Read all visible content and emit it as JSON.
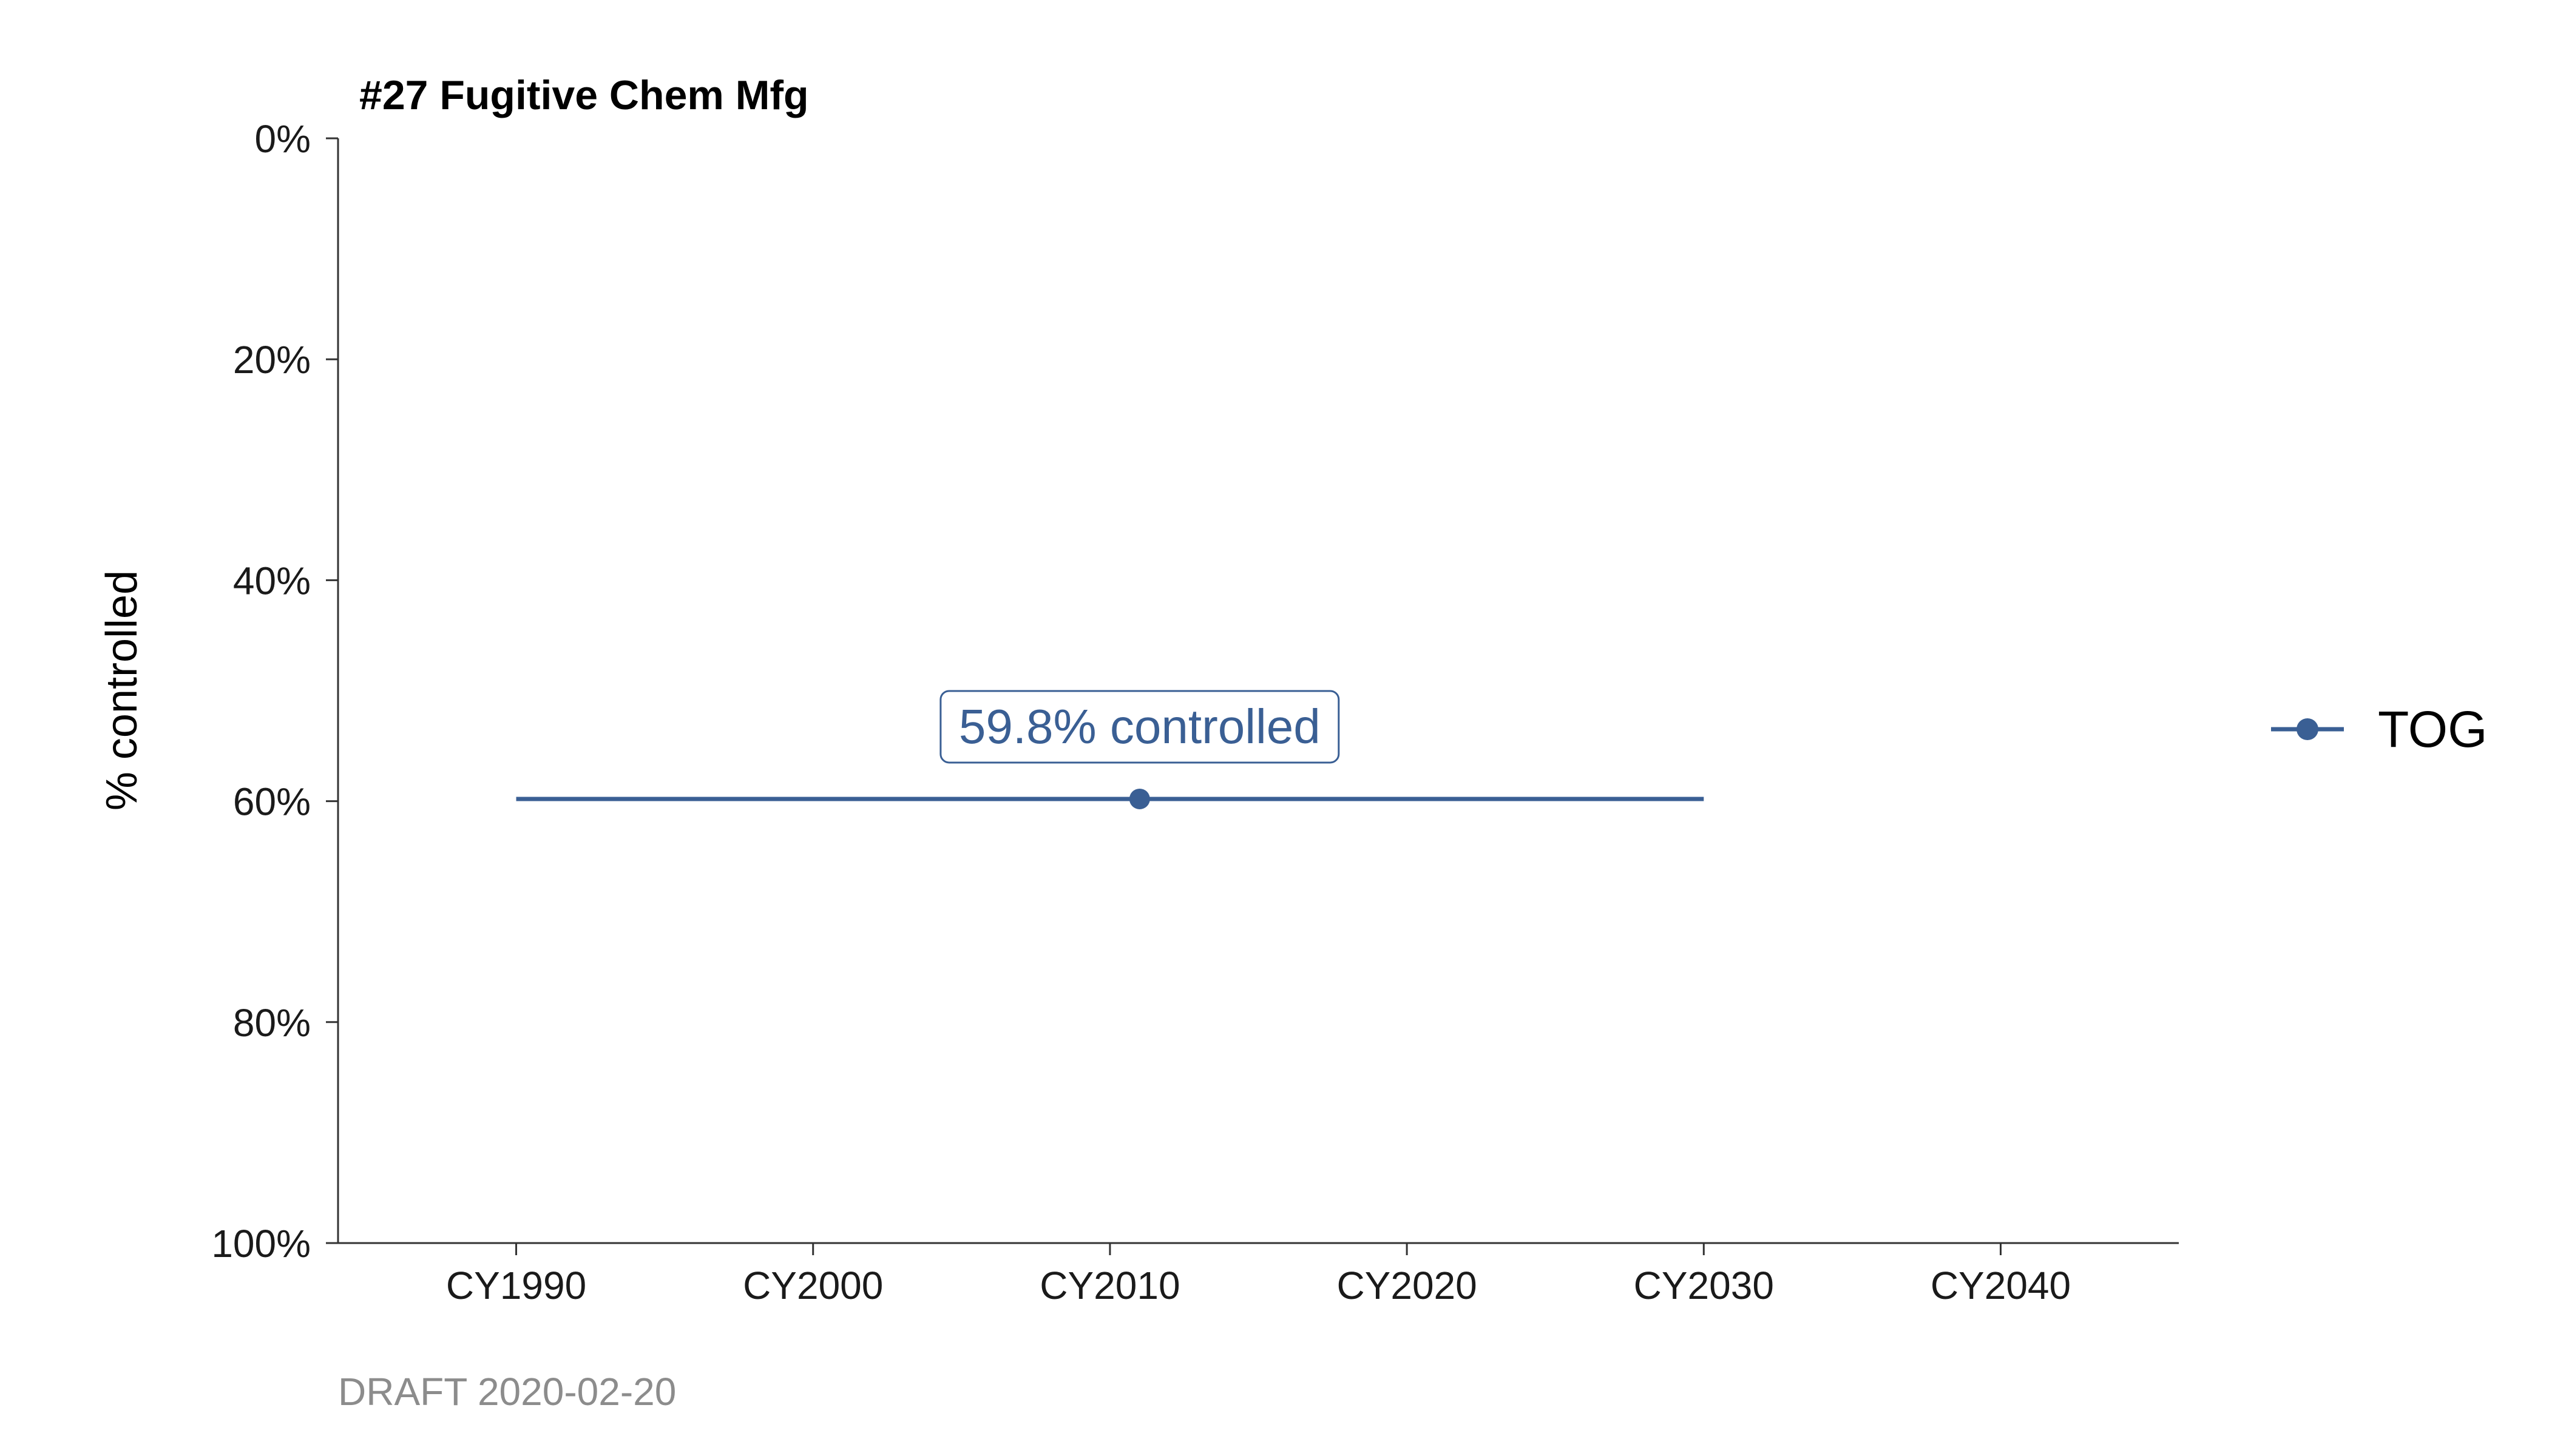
{
  "chart_data": {
    "type": "line",
    "title": "#27 Fugitive Chem Mfg",
    "xlabel": "",
    "ylabel": "% controlled",
    "x_ticks": [
      1990,
      2000,
      2010,
      2020,
      2030,
      2040
    ],
    "x_tick_labels": [
      "CY1990",
      "CY2000",
      "CY2010",
      "CY2020",
      "CY2030",
      "CY2040"
    ],
    "xlim": [
      1984,
      2046
    ],
    "ylim": [
      0,
      100
    ],
    "y_reversed": true,
    "y_ticks": [
      0,
      20,
      40,
      60,
      80,
      100
    ],
    "y_tick_labels": [
      "0%",
      "20%",
      "40%",
      "60%",
      "80%",
      "100%"
    ],
    "series": [
      {
        "name": "TOG",
        "color": "#3a5f94",
        "x": [
          1990,
          2030
        ],
        "values": [
          59.8,
          59.8
        ],
        "point": {
          "x": 2011,
          "y": 59.8
        }
      }
    ],
    "annotation": {
      "text": "59.8% controlled",
      "x": 2011,
      "y": 59.8
    },
    "legend": {
      "position": "right",
      "entries": [
        "TOG"
      ]
    },
    "grid": false
  },
  "caption": "DRAFT 2020-02-20"
}
